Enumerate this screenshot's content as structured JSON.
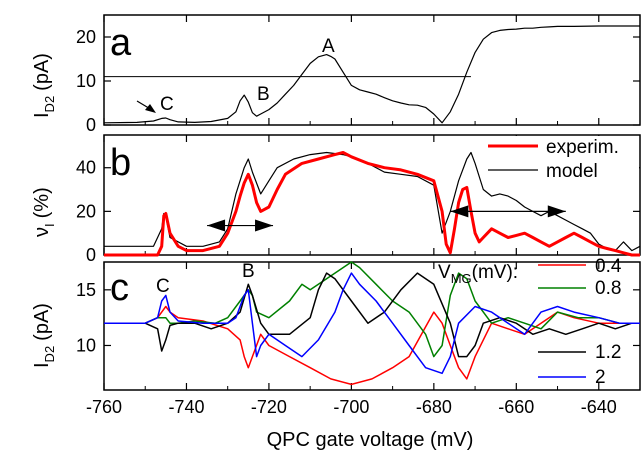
{
  "chart_data": [
    {
      "panel": "a",
      "type": "line",
      "xlabel": "QPC gate voltage (mV)",
      "ylabel_main": "I",
      "ylabel_sub": "D2",
      "ylabel_unit": "(pA)",
      "xlim": [
        -760,
        -630
      ],
      "ylim": [
        0,
        25
      ],
      "yticks": [
        0,
        10,
        20
      ],
      "annotations": [
        "A",
        "B",
        "C"
      ],
      "hline_value": 11,
      "series": [
        {
          "color": "#000000",
          "x": [
            -760,
            -752,
            -748,
            -746,
            -745,
            -744,
            -742,
            -738,
            -734,
            -730,
            -728,
            -727,
            -726,
            -725,
            -724,
            -723,
            -722,
            -720,
            -718,
            -716,
            -714,
            -712,
            -710,
            -708,
            -706,
            -705,
            -704,
            -702,
            -700,
            -698,
            -696,
            -694,
            -692,
            -690,
            -688,
            -686,
            -684,
            -682,
            -680,
            -678,
            -676,
            -674,
            -672,
            -670,
            -668,
            -666,
            -664,
            -662,
            -660,
            -658,
            -656,
            -654,
            -652,
            -650,
            -646,
            -640,
            -630
          ],
          "y": [
            0.5,
            0.6,
            0.9,
            1.5,
            1.6,
            1.2,
            0.7,
            0.6,
            0.8,
            1.5,
            3,
            5.5,
            6.8,
            5.2,
            2.8,
            2,
            2.5,
            3.5,
            5,
            7,
            9,
            11.5,
            14,
            15.5,
            16,
            15.6,
            15,
            12,
            9,
            8,
            7.5,
            7,
            6.2,
            5.5,
            5,
            4.6,
            4.5,
            4,
            2.5,
            0.5,
            3,
            7,
            12,
            16.5,
            19.5,
            21,
            21.5,
            21.7,
            21.8,
            22,
            22,
            22.2,
            22.3,
            22.4,
            22.4,
            22.5,
            22.5
          ]
        }
      ]
    },
    {
      "panel": "b",
      "type": "line",
      "ylabel_main": "ν",
      "ylabel_sub": "I",
      "ylabel_unit": "(%)",
      "xlim": [
        -760,
        -630
      ],
      "ylim": [
        0,
        55
      ],
      "yticks": [
        0,
        20,
        40
      ],
      "legend": [
        "experim.",
        "model"
      ],
      "series": [
        {
          "name": "experim.",
          "color": "#ff0000",
          "x": [
            -760,
            -750,
            -747,
            -746,
            -745.5,
            -745,
            -744,
            -742,
            -740,
            -736,
            -732,
            -730,
            -728,
            -727,
            -726,
            -725,
            -724,
            -723,
            -722,
            -720,
            -718,
            -716,
            -712,
            -708,
            -704,
            -702,
            -700,
            -696,
            -692,
            -688,
            -684,
            -680,
            -678,
            -677,
            -676,
            -675,
            -674,
            -673,
            -672,
            -671,
            -670,
            -669,
            -668,
            -667,
            -666,
            -664,
            -662,
            -660,
            -658,
            -656,
            -654,
            -652,
            -650,
            -648,
            -646,
            -644,
            -642,
            -640,
            -638,
            -636,
            -634,
            -632,
            -630
          ],
          "y": [
            0,
            0,
            0,
            4,
            18,
            19,
            10,
            4,
            2,
            2,
            4,
            10,
            20,
            27,
            33,
            37,
            32,
            24,
            20,
            22,
            30,
            37,
            42,
            44,
            46,
            47,
            45,
            42,
            40,
            39,
            37,
            34,
            20,
            5,
            1,
            12,
            24,
            30,
            31,
            20,
            10,
            6,
            8,
            10,
            12,
            10,
            8,
            9,
            10,
            8,
            6,
            4,
            6,
            8,
            10,
            8,
            6,
            4,
            3,
            2,
            1,
            0,
            0
          ]
        },
        {
          "name": "model",
          "color": "#000000",
          "x": [
            -760,
            -748,
            -746,
            -745.5,
            -745,
            -744,
            -740,
            -736,
            -732,
            -730,
            -728,
            -726,
            -725,
            -724,
            -722,
            -720,
            -718,
            -714,
            -710,
            -706,
            -702,
            -700,
            -696,
            -692,
            -688,
            -684,
            -680,
            -678,
            -676,
            -674,
            -672,
            -671,
            -670,
            -668,
            -666,
            -664,
            -662,
            -660,
            -658,
            -656,
            -654,
            -652,
            -650,
            -648,
            -646,
            -644,
            -642,
            -640,
            -638,
            -636,
            -634,
            -632,
            -630
          ],
          "y": [
            4,
            4,
            12,
            19,
            18,
            8,
            4,
            4,
            6,
            12,
            28,
            40,
            44,
            38,
            28,
            34,
            40,
            44,
            46,
            47,
            46,
            45,
            42,
            38,
            37,
            36,
            32,
            10,
            20,
            34,
            44,
            47,
            42,
            30,
            27,
            28,
            27,
            25,
            22,
            20,
            18,
            20,
            18,
            16,
            14,
            12,
            10,
            5,
            3,
            2,
            6,
            2,
            4
          ]
        }
      ],
      "arrow_lines": [
        {
          "y": 13.5,
          "x": [
            -735,
            -719
          ]
        },
        {
          "y": 20,
          "x": [
            -676,
            -648
          ]
        }
      ]
    },
    {
      "panel": "c",
      "type": "line",
      "ylabel_main": "I",
      "ylabel_sub": "D2",
      "ylabel_unit": "(pA)",
      "xlim": [
        -760,
        -630
      ],
      "ylim": [
        6,
        17.5
      ],
      "yticks": [
        10,
        15
      ],
      "xticks": [
        -760,
        -740,
        -720,
        -700,
        -680,
        -660,
        -640
      ],
      "annotations": [
        "B",
        "C"
      ],
      "legend_title_main": "V",
      "legend_title_sub": "MG",
      "legend_title_unit": "(mV):",
      "legend": [
        "0.4",
        "0.8",
        "1.2",
        "2"
      ],
      "series": [
        {
          "name": "0.4",
          "color": "#ff0000",
          "x": [
            -760,
            -750,
            -747,
            -745,
            -744,
            -742,
            -736,
            -730,
            -727,
            -726,
            -725,
            -724,
            -722,
            -720,
            -715,
            -710,
            -705,
            -700,
            -695,
            -690,
            -686,
            -683,
            -680,
            -678,
            -676,
            -674,
            -672,
            -670,
            -666,
            -662,
            -658,
            -654,
            -650,
            -646,
            -640,
            -635,
            -630
          ],
          "y": [
            12,
            12,
            12.5,
            13.5,
            13,
            12.5,
            12.2,
            11.5,
            10.5,
            9,
            8,
            9,
            11,
            10,
            9,
            8,
            7,
            6.5,
            7,
            8,
            9,
            11,
            13,
            12,
            10,
            8,
            7,
            9,
            12,
            11.5,
            11,
            12,
            13,
            12.5,
            12,
            12,
            12
          ]
        },
        {
          "name": "0.8",
          "color": "#008000",
          "x": [
            -760,
            -750,
            -747,
            -745,
            -744,
            -742,
            -738,
            -733,
            -730,
            -727,
            -725,
            -724,
            -723,
            -720,
            -715,
            -712,
            -710,
            -706,
            -702,
            -700,
            -698,
            -694,
            -690,
            -686,
            -682,
            -680,
            -678,
            -676,
            -674,
            -672,
            -670,
            -666,
            -662,
            -658,
            -654,
            -650,
            -645,
            -640,
            -635,
            -630
          ],
          "y": [
            12,
            12,
            12.5,
            12.5,
            12,
            12,
            12.2,
            12,
            12.5,
            14,
            15,
            14.5,
            13,
            12.5,
            14,
            15.5,
            15,
            16,
            17,
            17.5,
            17,
            15.5,
            14,
            13,
            11,
            9,
            10,
            14.5,
            16.5,
            16,
            14,
            12,
            12.5,
            12,
            11.5,
            13,
            12.5,
            12.5,
            12,
            12
          ]
        },
        {
          "name": "1.2",
          "color": "#000000",
          "x": [
            -760,
            -750,
            -747,
            -746,
            -745,
            -744,
            -742,
            -738,
            -734,
            -730,
            -727,
            -725,
            -724,
            -722,
            -720,
            -715,
            -710,
            -708,
            -706,
            -704,
            -700,
            -696,
            -692,
            -688,
            -684,
            -680,
            -676,
            -674,
            -672,
            -670,
            -668,
            -664,
            -660,
            -656,
            -652,
            -648,
            -644,
            -640,
            -636,
            -632,
            -630
          ],
          "y": [
            12,
            12,
            11.5,
            9.5,
            10.5,
            11.8,
            12,
            12,
            11.5,
            12,
            13,
            15.5,
            14.5,
            12,
            11,
            11,
            12.5,
            15,
            16.5,
            16,
            14,
            12,
            13,
            15,
            16.5,
            15.5,
            12,
            9,
            9,
            10,
            12,
            12.5,
            12,
            11,
            11.5,
            11,
            11.5,
            12,
            11.5,
            12,
            12
          ]
        },
        {
          "name": "2",
          "color": "#0000ff",
          "x": [
            -760,
            -750,
            -747,
            -746,
            -745,
            -744,
            -742,
            -736,
            -730,
            -728,
            -726,
            -725,
            -724,
            -723,
            -722,
            -720,
            -716,
            -712,
            -708,
            -704,
            -702,
            -700,
            -698,
            -694,
            -690,
            -686,
            -682,
            -678,
            -676,
            -674,
            -670,
            -666,
            -662,
            -658,
            -654,
            -650,
            -646,
            -640,
            -635,
            -630
          ],
          "y": [
            12,
            12,
            12.5,
            14,
            14.5,
            13,
            12.2,
            12,
            12,
            12.5,
            14.5,
            15,
            12,
            9,
            10,
            11,
            10,
            9,
            10.5,
            13,
            15,
            16.5,
            15.5,
            14,
            12,
            10,
            8,
            7.5,
            9,
            12,
            13.5,
            13,
            12,
            11,
            13,
            13.5,
            13,
            12.5,
            12,
            12
          ]
        }
      ]
    }
  ]
}
